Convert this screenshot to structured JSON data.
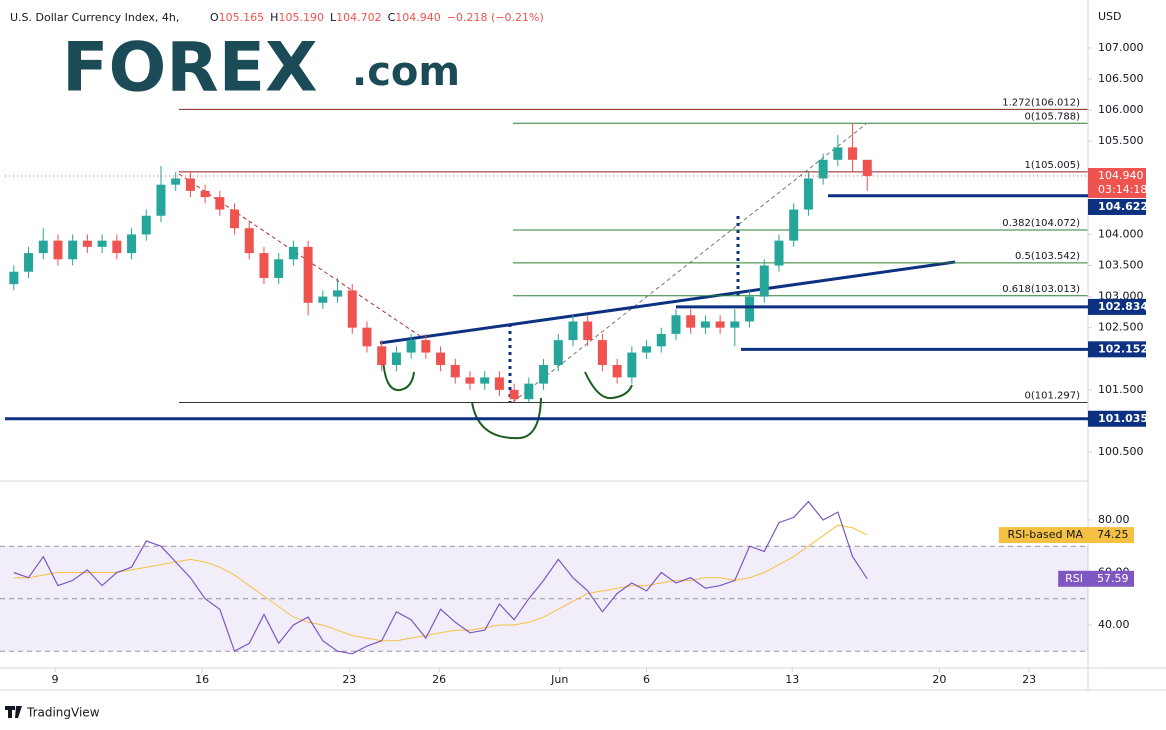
{
  "header": {
    "symbol": "U.S. Dollar Currency Index, 4h,",
    "ohlc": [
      "O",
      "105.165",
      "H",
      "105.190",
      "L",
      "104.702",
      "C",
      "104.940",
      "−0.218 (−0.21%)"
    ]
  },
  "logo": {
    "main": "FOREX",
    "suffix": ".com"
  },
  "footer": "TradingView",
  "chart_data": [
    {
      "type": "candlestick",
      "currency": "USD",
      "up_color": "#26a69a",
      "down_color": "#ef5350",
      "open": [
        103.2,
        103.4,
        103.7,
        103.9,
        103.6,
        103.9,
        103.8,
        103.9,
        103.7,
        104.0,
        104.3,
        104.8,
        104.9,
        104.7,
        104.6,
        104.4,
        104.1,
        103.7,
        103.3,
        103.6,
        103.8,
        102.9,
        103.0,
        103.1,
        102.5,
        102.2,
        101.9,
        102.1,
        102.3,
        102.1,
        101.9,
        101.7,
        101.6,
        101.7,
        101.5,
        101.35,
        101.6,
        101.9,
        102.3,
        102.6,
        102.3,
        101.9,
        101.7,
        102.1,
        102.2,
        102.4,
        102.7,
        102.5,
        102.6,
        102.5,
        102.6,
        103.0,
        103.5,
        103.9,
        104.4,
        104.9,
        105.2,
        105.4,
        105.2
      ],
      "high": [
        103.5,
        103.8,
        104.1,
        104.0,
        104.0,
        104.0,
        104.0,
        104.0,
        104.1,
        104.4,
        105.1,
        105.0,
        105.0,
        104.8,
        104.7,
        104.5,
        104.2,
        103.8,
        103.7,
        103.9,
        103.9,
        103.1,
        103.3,
        103.2,
        102.6,
        102.3,
        102.2,
        102.4,
        102.4,
        102.2,
        102.0,
        101.8,
        101.8,
        101.8,
        101.6,
        101.7,
        102.0,
        102.4,
        102.7,
        102.7,
        102.4,
        102.0,
        102.2,
        102.3,
        102.5,
        102.8,
        102.8,
        102.7,
        102.7,
        102.8,
        103.1,
        103.6,
        104.0,
        104.5,
        105.0,
        105.3,
        105.6,
        105.79,
        105.19
      ],
      "low": [
        103.1,
        103.3,
        103.6,
        103.5,
        103.5,
        103.7,
        103.7,
        103.6,
        103.6,
        103.9,
        104.2,
        104.7,
        104.6,
        104.5,
        104.3,
        104.0,
        103.6,
        103.2,
        103.2,
        103.5,
        102.7,
        102.8,
        102.9,
        102.4,
        102.1,
        101.8,
        101.8,
        102.0,
        102.0,
        101.8,
        101.6,
        101.5,
        101.5,
        101.4,
        101.3,
        101.3,
        101.5,
        101.8,
        102.2,
        102.2,
        101.8,
        101.6,
        101.6,
        102.0,
        102.1,
        102.3,
        102.4,
        102.4,
        102.4,
        102.2,
        102.5,
        102.9,
        103.4,
        103.8,
        104.3,
        104.8,
        105.1,
        105.0,
        104.7
      ],
      "close": [
        103.4,
        103.7,
        103.9,
        103.6,
        103.9,
        103.8,
        103.9,
        103.7,
        104.0,
        104.3,
        104.8,
        104.9,
        104.7,
        104.6,
        104.4,
        104.1,
        103.7,
        103.3,
        103.6,
        103.8,
        102.9,
        103.0,
        103.1,
        102.5,
        102.2,
        101.9,
        102.1,
        102.3,
        102.1,
        101.9,
        101.7,
        101.6,
        101.7,
        101.5,
        101.35,
        101.6,
        101.9,
        102.3,
        102.6,
        102.3,
        101.9,
        101.7,
        102.1,
        102.2,
        102.4,
        102.7,
        102.5,
        102.6,
        102.5,
        102.6,
        103.0,
        103.5,
        103.9,
        104.4,
        104.9,
        105.2,
        105.4,
        105.2,
        104.94
      ],
      "xlim": [
        -0.6,
        73.0
      ],
      "xticks": [
        {
          "value": 2.8,
          "label": "9"
        },
        {
          "value": 12.8,
          "label": "16"
        },
        {
          "value": 22.8,
          "label": "23"
        },
        {
          "value": 28.9,
          "label": "26"
        },
        {
          "value": 37.1,
          "label": "Jun"
        },
        {
          "value": 43.0,
          "label": "6"
        },
        {
          "value": 52.9,
          "label": "13"
        },
        {
          "value": 62.9,
          "label": "20"
        },
        {
          "value": 69.0,
          "label": "23"
        }
      ],
      "ylim": [
        100.05,
        107.69
      ],
      "yticks": [
        {
          "value": 100.5,
          "label": "100.500"
        },
        {
          "value": 101.5,
          "label": "101.500"
        },
        {
          "value": 102.5,
          "label": "102.500"
        },
        {
          "value": 103,
          "label": "103.000"
        },
        {
          "value": 103.5,
          "label": "103.500"
        },
        {
          "value": 104,
          "label": "104.000"
        },
        {
          "value": 105.5,
          "label": "105.500"
        },
        {
          "value": 106,
          "label": "106.000"
        },
        {
          "value": 106.5,
          "label": "106.500"
        },
        {
          "value": 107,
          "label": "107.000"
        }
      ],
      "last_price": {
        "value": 104.94,
        "label": "104.940"
      },
      "countdown": "03:14:18",
      "level_color": "#0d3181",
      "levels": [
        104.622,
        102.834,
        102.152,
        101.035
      ],
      "fib_levels": [
        {
          "label": "1.272(106.012)",
          "value": 106.012,
          "color": "#8b2020"
        },
        {
          "label": "0(105.788)",
          "value": 105.788,
          "color": "#2e7d32"
        },
        {
          "label": "1(105.005)",
          "value": 105.005,
          "color": "#8b2020"
        },
        {
          "label": "0.382(104.072)",
          "value": 104.072,
          "color": "#2e7d32"
        },
        {
          "label": "0.5(103.542)",
          "value": 103.542,
          "color": "#2e7d32"
        },
        {
          "label": "0.618(103.013)",
          "value": 103.013,
          "color": "#2e7d32"
        },
        {
          "label": "0(101.297)",
          "value": 101.297,
          "color": "#333333"
        }
      ]
    },
    {
      "type": "line",
      "ylim": [
        23.6,
        94.1
      ],
      "yticks": [
        {
          "value": 40,
          "label": "40.00"
        },
        {
          "value": 60,
          "label": "60.00"
        },
        {
          "value": 80,
          "label": "80.00"
        }
      ],
      "band": [
        30,
        70
      ],
      "band_mid": 50,
      "series": [
        {
          "name": "RSI",
          "color": "#7e57c2",
          "values": [
            60,
            58,
            66,
            55,
            57,
            61,
            55,
            60,
            62,
            72,
            70,
            64,
            58,
            50,
            46,
            30,
            33,
            44,
            33,
            40,
            43,
            34,
            30,
            29,
            32,
            34,
            45,
            42,
            35,
            46,
            41,
            37,
            38,
            48,
            42,
            50,
            57,
            65,
            58,
            53,
            45,
            52,
            56,
            53,
            60,
            56,
            58,
            54,
            55,
            57,
            70,
            68,
            79,
            81,
            87,
            80,
            83,
            66,
            57.59
          ]
        },
        {
          "name": "RSI-based MA",
          "color": "#f5c142",
          "values": [
            58,
            58,
            59,
            60,
            60,
            60,
            60,
            60,
            61,
            62,
            63,
            64,
            65,
            64,
            62,
            59,
            55,
            51,
            47,
            43,
            41,
            40,
            38,
            36,
            35,
            34,
            34,
            35,
            36,
            37,
            38,
            38,
            39,
            40,
            40,
            41,
            43,
            46,
            49,
            52,
            53,
            54,
            55,
            55,
            56,
            57,
            57,
            58,
            58,
            57,
            58,
            60,
            63,
            66,
            70,
            74,
            78,
            77,
            74.25
          ]
        }
      ]
    }
  ]
}
